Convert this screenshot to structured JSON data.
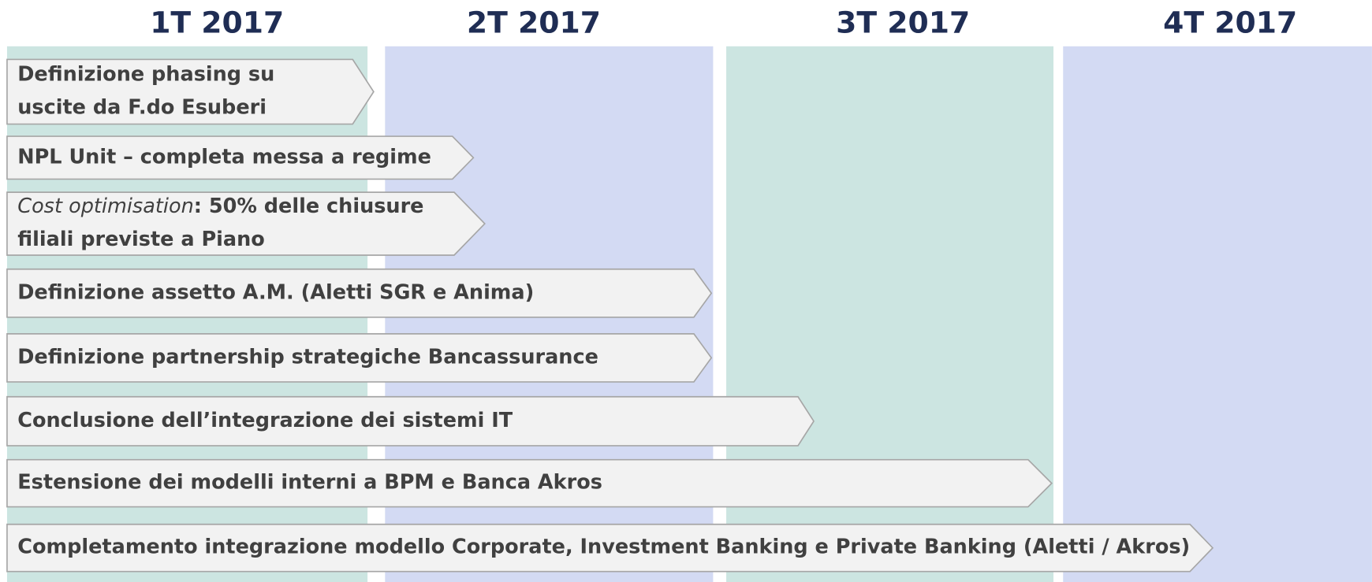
{
  "quarters": [
    "1T 2017",
    "2T 2017",
    "3T 2017",
    "4T 2017"
  ],
  "tasks": [
    {
      "lines": [
        "Definizione phasing su",
        "uscite da F.do Esuberi"
      ]
    },
    {
      "lines": [
        "NPL Unit – completa messa a regime"
      ]
    },
    {
      "lines": [
        {
          "italic": "Cost optimisation",
          "text": ": 50% delle chiusure"
        },
        "filiali previste a Piano"
      ]
    },
    {
      "lines": [
        "Definizione assetto A.M. (Aletti SGR e Anima)"
      ]
    },
    {
      "lines": [
        "Definizione partnership strategiche Bancassurance"
      ]
    },
    {
      "lines": [
        "Conclusione dell’integrazione dei sistemi IT"
      ]
    },
    {
      "lines": [
        "Estensione dei modelli interni a BPM e Banca Akros"
      ]
    },
    {
      "lines": [
        "Completamento integrazione modello Corporate, Investment Banking e Private Banking (Aletti / Akros)"
      ]
    }
  ]
}
